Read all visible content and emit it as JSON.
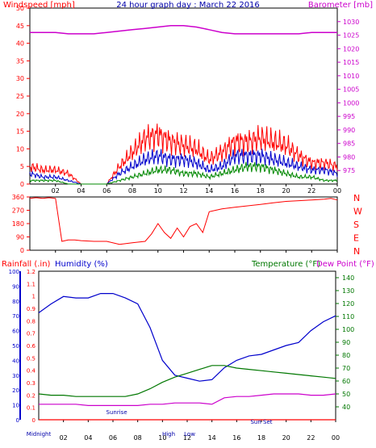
{
  "title": "24 hour graph day : March 22 2016",
  "colors": {
    "wind": "#ff0000",
    "gust": "#ff0000",
    "baro": "#cc00cc",
    "hum": "#0000cc",
    "temp": "#007700",
    "dew": "#cc00cc",
    "avg": "#0000cc",
    "low": "#008800",
    "bg": "#ffffff",
    "plot_bg": "#ffffff",
    "highlight": "#ffff66"
  },
  "chart_data": [
    {
      "type": "line",
      "title": "24 hour graph day : March 22 2016",
      "ylabel_left": "Windspeed [mph]",
      "ylabel_right": "Barometer [mb]",
      "ylim_left": [
        0,
        50
      ],
      "ylim_right": [
        970,
        1035
      ],
      "yticks_left": [
        "0",
        "5",
        "10",
        "15",
        "20",
        "25",
        "30",
        "35",
        "40",
        "45",
        "50"
      ],
      "yticks_right": [
        "975",
        "980",
        "985",
        "990",
        "995",
        "1000",
        "1005",
        "1010",
        "1015",
        "1020",
        "1025",
        "1030"
      ],
      "xticks": [
        "02",
        "04",
        "06",
        "08",
        "10",
        "12",
        "14",
        "16",
        "18",
        "20",
        "22",
        "00"
      ],
      "x_hours": [
        0,
        1,
        2,
        3,
        4,
        5,
        6,
        7,
        8,
        9,
        10,
        11,
        12,
        13,
        14,
        15,
        16,
        17,
        18,
        19,
        20,
        21,
        22,
        23,
        24
      ],
      "series": [
        {
          "name": "Windspeed [mph]",
          "kind": "gust",
          "values": [
            5,
            4,
            4,
            3,
            0,
            0,
            0,
            5,
            9,
            13,
            14,
            12,
            11,
            10,
            7,
            9,
            12,
            12,
            13,
            12,
            11,
            8,
            6,
            6,
            5
          ]
        },
        {
          "name": "Windspeed [mph]",
          "kind": "average",
          "values": [
            3,
            2,
            2,
            1,
            0,
            0,
            0,
            3,
            5,
            7,
            8,
            7,
            7,
            6,
            4,
            5,
            8,
            8,
            8,
            7,
            6,
            5,
            4,
            4,
            3
          ]
        },
        {
          "name": "Windspeed [mph]",
          "kind": "low",
          "values": [
            1,
            1,
            1,
            0,
            0,
            0,
            0,
            1,
            2,
            3,
            4,
            4,
            3,
            3,
            2,
            3,
            4,
            5,
            5,
            4,
            3,
            2,
            2,
            1,
            1
          ]
        },
        {
          "name": "Barometer [mb]",
          "values": [
            1026,
            1026,
            1026,
            1025.5,
            1025.5,
            1025.5,
            1026,
            1026.5,
            1027,
            1027.5,
            1028,
            1028.5,
            1028.5,
            1028,
            1027,
            1026,
            1025.5,
            1025.5,
            1025.5,
            1025.5,
            1025.5,
            1025.5,
            1026,
            1026,
            1026
          ]
        }
      ]
    },
    {
      "type": "line",
      "ylabel_right": [
        "N",
        "W",
        "S",
        "E",
        "N"
      ],
      "ylim": [
        0,
        360
      ],
      "yticks": [
        "0",
        "90",
        "180",
        "270",
        "360"
      ],
      "xticks": [
        "02",
        "04",
        "06",
        "08",
        "10",
        "12",
        "14",
        "16",
        "18",
        "20",
        "22",
        "00"
      ],
      "series": [
        {
          "name": "Wind Direction",
          "x": [
            0,
            0.5,
            1,
            1.5,
            2,
            2.5,
            3,
            3.5,
            4,
            5,
            6,
            7,
            7.5,
            8,
            8.5,
            9,
            9.5,
            10,
            10.5,
            11,
            11.5,
            12,
            12.5,
            13,
            13.5,
            14,
            14.5,
            15,
            16,
            17,
            18,
            19,
            20,
            21,
            22,
            23,
            23.5,
            24
          ],
          "values": [
            350,
            355,
            350,
            355,
            350,
            60,
            70,
            70,
            65,
            60,
            60,
            40,
            45,
            50,
            55,
            60,
            110,
            180,
            120,
            80,
            150,
            90,
            160,
            180,
            120,
            260,
            270,
            280,
            290,
            300,
            310,
            320,
            330,
            335,
            340,
            345,
            350,
            340
          ]
        }
      ]
    },
    {
      "type": "line",
      "ylabel_left_1": "Rainfall (.in)",
      "ylabel_left_2": "Humidity (%)",
      "ylabel_right_1": "Temperature (°F)",
      "ylabel_right_2": "Dew Point (°F)",
      "ylim_rain": [
        0,
        1.2
      ],
      "ylim_hum": [
        0,
        100
      ],
      "ylim_temp": [
        30,
        145
      ],
      "yticks_rain": [
        "0",
        "0.1",
        "0.2",
        "0.3",
        "0.4",
        "0.5",
        "0.6",
        "0.7",
        "0.8",
        "0.9",
        "1",
        "1.1",
        "1.2"
      ],
      "yticks_hum": [
        "0",
        "10",
        "20",
        "30",
        "40",
        "50",
        "60",
        "70",
        "80",
        "90",
        "100"
      ],
      "yticks_temp": [
        "40",
        "50",
        "60",
        "70",
        "80",
        "90",
        "100",
        "110",
        "120",
        "130",
        "140"
      ],
      "xticks": [
        "02",
        "04",
        "06",
        "08",
        "10",
        "12",
        "14",
        "16",
        "18",
        "20",
        "22",
        "00"
      ],
      "annotations": [
        "Sunrise",
        "Sun Set",
        "High",
        "Low",
        "Midnight"
      ],
      "x_hours": [
        0,
        1,
        2,
        3,
        4,
        5,
        6,
        7,
        8,
        9,
        10,
        11,
        12,
        13,
        14,
        15,
        16,
        17,
        18,
        19,
        20,
        21,
        22,
        23,
        24
      ],
      "series": [
        {
          "name": "Humidity (%)",
          "values": [
            72,
            78,
            83,
            82,
            82,
            85,
            85,
            82,
            78,
            62,
            40,
            30,
            28,
            26,
            27,
            35,
            40,
            43,
            44,
            47,
            50,
            52,
            60,
            66,
            70
          ]
        },
        {
          "name": "Temperature (°F)",
          "values": [
            50,
            49,
            49,
            48,
            48,
            48,
            48,
            48,
            50,
            54,
            59,
            63,
            66,
            69,
            72,
            72,
            70,
            69,
            68,
            67,
            66,
            65,
            64,
            63,
            62
          ]
        },
        {
          "name": "Dew Point (°F)",
          "values": [
            42,
            42,
            42,
            42,
            41,
            41,
            41,
            41,
            41,
            42,
            42,
            43,
            43,
            43,
            42,
            47,
            48,
            48,
            49,
            50,
            50,
            50,
            49,
            49,
            50
          ]
        },
        {
          "name": "Rainfall (.in)",
          "values": [
            0,
            0,
            0,
            0,
            0,
            0,
            0,
            0,
            0,
            0,
            0,
            0,
            0,
            0,
            0,
            0,
            0,
            0,
            0,
            0,
            0,
            0,
            0,
            0,
            0
          ]
        }
      ]
    }
  ]
}
